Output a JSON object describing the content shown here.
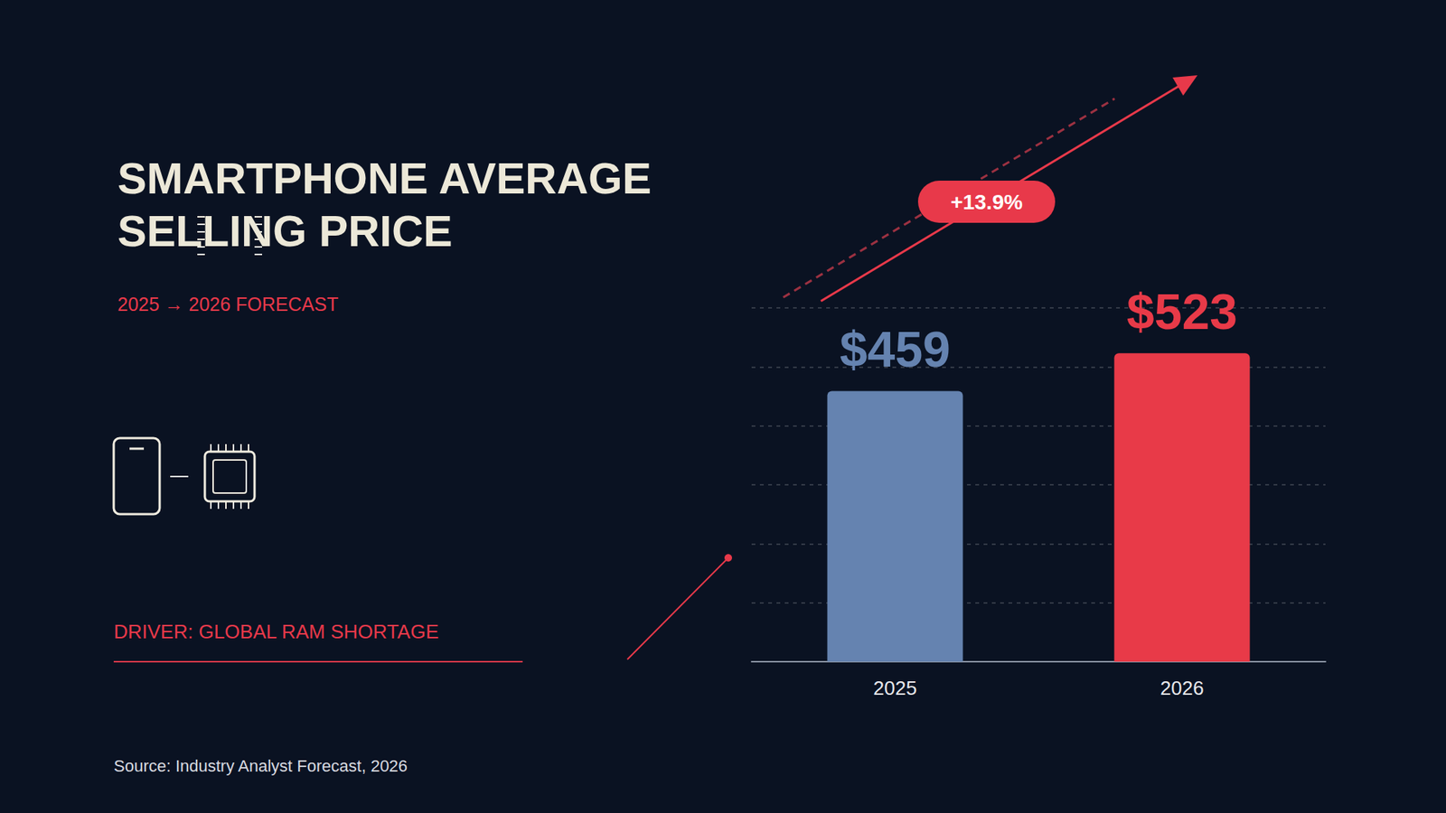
{
  "chart_data": {
    "type": "bar",
    "title": "SMARTPHONE AVERAGE SELLING PRICE",
    "subtitle": "2025 → 2026 FORECAST",
    "categories": [
      "2025",
      "2026"
    ],
    "values": [
      459,
      523
    ],
    "value_labels": [
      "$459",
      "$523"
    ],
    "colors": [
      "#6583b0",
      "#e83a48"
    ],
    "ylim": [
      0,
      600
    ],
    "yticks": [
      0,
      100,
      200,
      300,
      400,
      500,
      600
    ],
    "grid": true,
    "tick_labels": "x",
    "data_labels": true,
    "annotations": [
      "+13.9%",
      "DRIVER: GLOBAL RAM SHORTAGE"
    ],
    "source": "Source: Industry Analyst Forecast, 2026"
  }
}
